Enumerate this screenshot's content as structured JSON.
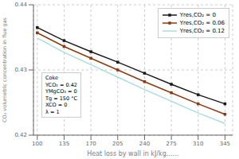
{
  "chart_data": {
    "type": "line",
    "x_label": "Heat loss by wall in kJ/kg……",
    "y_label": "CO₂ volumetric concentration in flue gas",
    "x": [
      100,
      135,
      170,
      205,
      240,
      275,
      310,
      345
    ],
    "series": [
      {
        "name": "Yres,CO₂ = 0",
        "color": "#1a1a1a",
        "marker": "square",
        "values": [
          0.4365,
          0.4345,
          0.4328,
          0.4312,
          0.4295,
          0.4278,
          0.4262,
          0.4248
        ]
      },
      {
        "name": "Yres,CO₂ = 0.06",
        "color": "#8b3a0f",
        "marker": "square",
        "values": [
          0.4357,
          0.4336,
          0.4318,
          0.43,
          0.4282,
          0.4265,
          0.4248,
          0.4232
        ]
      },
      {
        "name": "Yres,CO₂ = 0.12",
        "color": "#aadddd",
        "marker": "none",
        "values": [
          0.4349,
          0.4327,
          0.4308,
          0.4289,
          0.427,
          0.4252,
          0.4234,
          0.4218
        ]
      }
    ],
    "xlim": [
      95,
      355
    ],
    "ylim": [
      0.42,
      0.44
    ],
    "xticks": [
      100,
      135,
      170,
      205,
      240,
      275,
      310,
      345
    ],
    "yticks": [
      0.42,
      0.43,
      0.44
    ],
    "grid": true,
    "legend": "upper right",
    "annotations": [
      "Coke\nYCO₂ = 0.42\nYMgCO₃ = 0\nTg = 150 °C\nXCO = 0\nλ = 1"
    ]
  }
}
